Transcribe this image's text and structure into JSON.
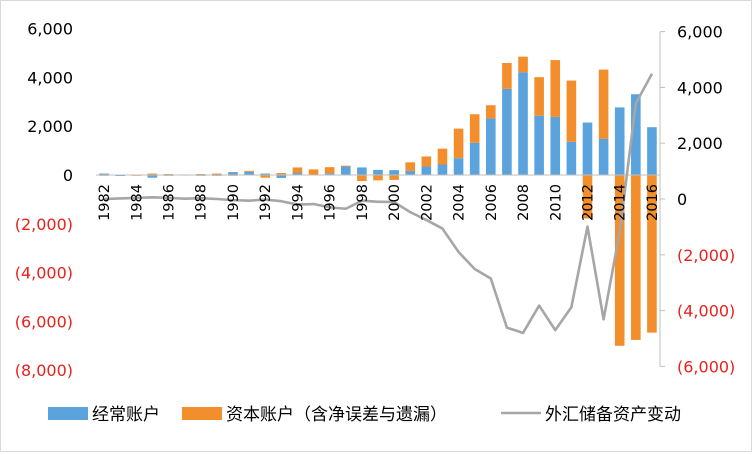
{
  "chart_data": {
    "type": "bar",
    "categories": [
      "1982",
      "1983",
      "1984",
      "1985",
      "1986",
      "1987",
      "1988",
      "1989",
      "1990",
      "1991",
      "1992",
      "1993",
      "1994",
      "1995",
      "1996",
      "1997",
      "1998",
      "1999",
      "2000",
      "2001",
      "2002",
      "2003",
      "2004",
      "2005",
      "2006",
      "2007",
      "2008",
      "2009",
      "2010",
      "2011",
      "2012",
      "2013",
      "2014",
      "2015",
      "2016"
    ],
    "x_tick_labels": [
      "1982",
      "1984",
      "1986",
      "1988",
      "1990",
      "1992",
      "1994",
      "1996",
      "1998",
      "2000",
      "2002",
      "2004",
      "2006",
      "2008",
      "2010",
      "2012",
      "2014",
      "2016"
    ],
    "series": [
      {
        "name": "经常账户",
        "type": "bar",
        "axis": "left",
        "color": "#5ba3dc",
        "values": [
          60,
          -40,
          20,
          -110,
          -20,
          10,
          -30,
          -20,
          120,
          130,
          60,
          -120,
          80,
          20,
          70,
          370,
          310,
          210,
          200,
          170,
          350,
          430,
          690,
          1320,
          2320,
          3530,
          4210,
          2430,
          2380,
          1360,
          2150,
          1480,
          2770,
          3310,
          1960
        ]
      },
      {
        "name": "资本账户（含净误差与遗漏）",
        "type": "bar",
        "axis": "left",
        "color": "#f28e2b",
        "values": [
          -20,
          0,
          -10,
          60,
          40,
          0,
          40,
          60,
          -30,
          40,
          -110,
          80,
          230,
          210,
          250,
          10,
          -250,
          -220,
          -200,
          350,
          410,
          650,
          1210,
          1170,
          540,
          1060,
          640,
          1580,
          2330,
          2510,
          -1780,
          2840,
          -7000,
          -6760,
          -6460
        ]
      },
      {
        "name": "外汇储备资产变动",
        "type": "line",
        "axis": "right",
        "color": "#a6a6a6",
        "values": [
          0,
          20,
          40,
          60,
          40,
          10,
          30,
          0,
          -40,
          -60,
          -20,
          -80,
          -200,
          -180,
          -300,
          -350,
          -60,
          -100,
          -110,
          -470,
          -750,
          -1060,
          -1900,
          -2510,
          -2850,
          -4610,
          -4800,
          -3820,
          -4700,
          -3880,
          -990,
          -4310,
          -1180,
          3430,
          4490
        ]
      }
    ],
    "y_left": {
      "min": -8000,
      "max": 6000,
      "step": 2000,
      "tick_labels": [
        "(8,000)",
        "(6,000)",
        "(4,000)",
        "(2,000)",
        "0",
        "2,000",
        "4,000",
        "6,000"
      ]
    },
    "y_right": {
      "min": -6000,
      "max": 6000,
      "step": 2000,
      "tick_labels": [
        "(6,000)",
        "(4,000)",
        "(2,000)",
        "0",
        "2,000",
        "4,000",
        "6,000"
      ]
    },
    "negative_label_color": "#e8211d",
    "positive_label_color": "#000000",
    "grid": false,
    "legend_position": "bottom",
    "title": "",
    "xlabel": "",
    "ylabel": ""
  }
}
